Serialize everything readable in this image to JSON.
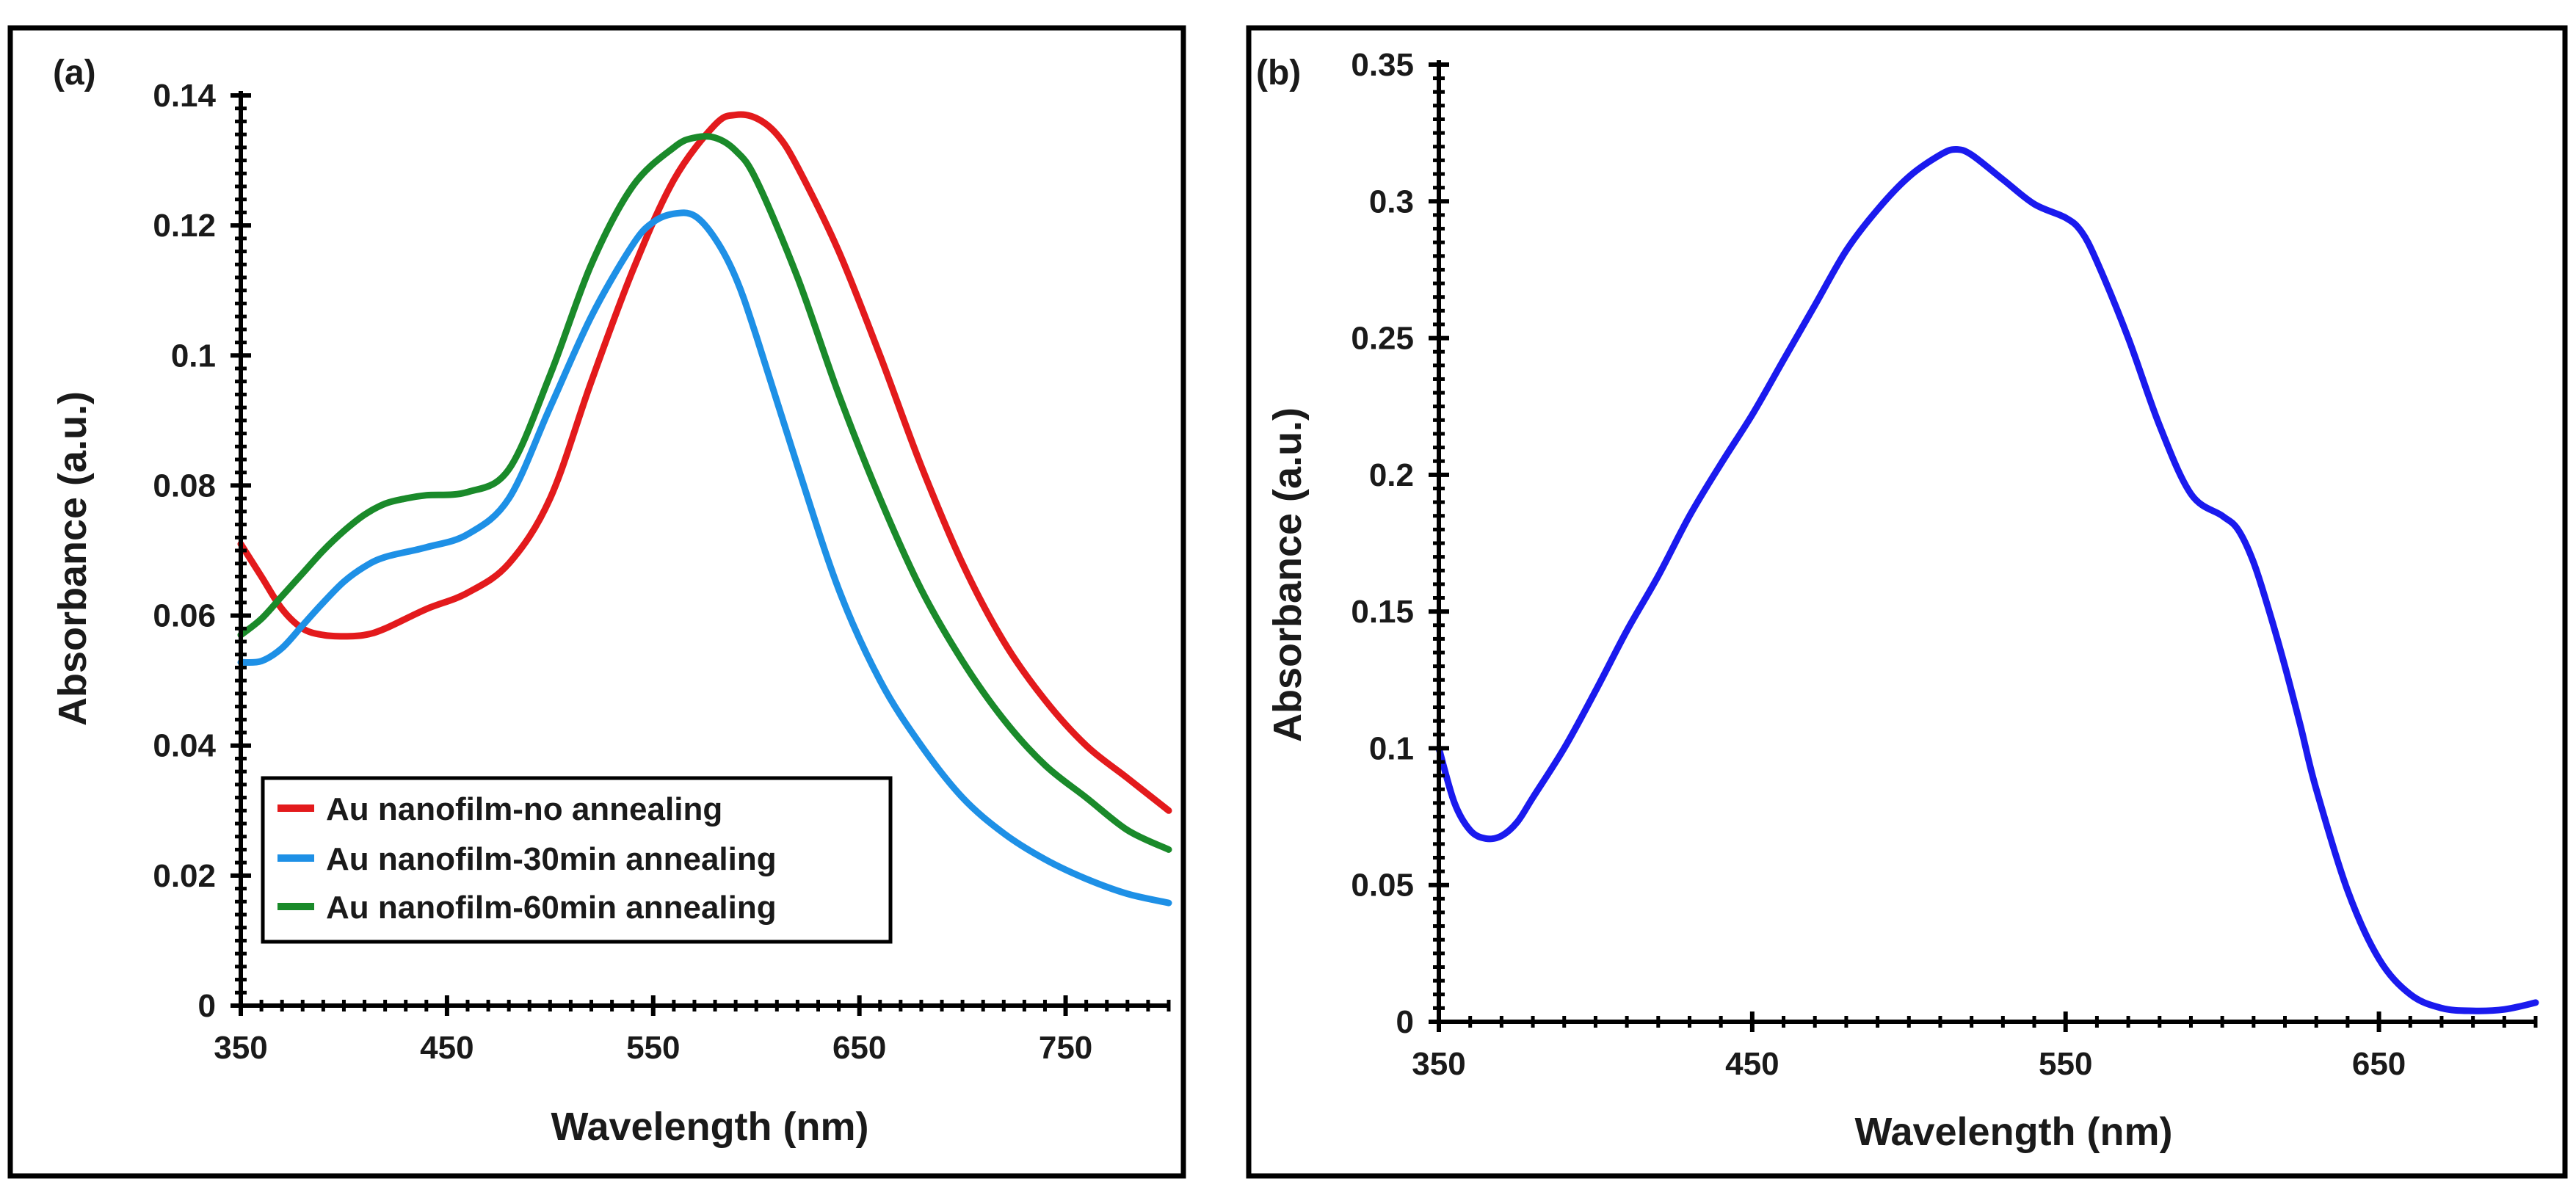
{
  "chart_data": [
    {
      "type": "line",
      "panel_label": "(a)",
      "xlabel": "Wavelength (nm)",
      "ylabel": "Absorbance (a.u.)",
      "xlim": [
        350,
        800
      ],
      "ylim": [
        0,
        0.14
      ],
      "xticks": [
        350,
        450,
        550,
        650,
        750
      ],
      "xtick_labels": [
        "350",
        "450",
        "550",
        "650",
        "750"
      ],
      "yticks": [
        0,
        0.02,
        0.04,
        0.06,
        0.08,
        0.1,
        0.12,
        0.14
      ],
      "ytick_labels": [
        "0",
        "0.02",
        "0.04",
        "0.06",
        "0.08",
        "0.1",
        "0.12",
        "0.14"
      ],
      "grid": false,
      "legend_position": "bottom-left",
      "series": [
        {
          "name": "Au nanofilm-no annealing",
          "color": "#e31a1c",
          "x": [
            350,
            360,
            370,
            380,
            390,
            400,
            410,
            420,
            440,
            460,
            480,
            500,
            520,
            540,
            560,
            580,
            590,
            600,
            610,
            620,
            640,
            660,
            680,
            700,
            720,
            740,
            760,
            780,
            800
          ],
          "y": [
            0.071,
            0.066,
            0.061,
            0.058,
            0.057,
            0.0568,
            0.057,
            0.058,
            0.061,
            0.0635,
            0.068,
            0.078,
            0.096,
            0.113,
            0.127,
            0.1355,
            0.137,
            0.1365,
            0.134,
            0.129,
            0.116,
            0.1,
            0.083,
            0.068,
            0.056,
            0.047,
            0.04,
            0.035,
            0.03
          ]
        },
        {
          "name": "Au nanofilm-30min annealing",
          "color": "#1e90e6",
          "x": [
            350,
            360,
            370,
            380,
            390,
            400,
            410,
            420,
            440,
            460,
            480,
            500,
            520,
            540,
            550,
            560,
            570,
            580,
            590,
            600,
            620,
            640,
            660,
            680,
            700,
            720,
            740,
            760,
            780,
            800
          ],
          "y": [
            0.0528,
            0.053,
            0.055,
            0.0585,
            0.062,
            0.0652,
            0.0675,
            0.069,
            0.0705,
            0.0725,
            0.078,
            0.092,
            0.106,
            0.117,
            0.1205,
            0.1218,
            0.1215,
            0.118,
            0.112,
            0.103,
            0.083,
            0.064,
            0.05,
            0.04,
            0.032,
            0.0265,
            0.0225,
            0.0195,
            0.0172,
            0.0158
          ]
        },
        {
          "name": "Au nanofilm-60min annealing",
          "color": "#1a8a2a",
          "x": [
            350,
            360,
            370,
            380,
            390,
            400,
            410,
            420,
            430,
            440,
            460,
            480,
            500,
            520,
            540,
            560,
            570,
            580,
            590,
            600,
            620,
            640,
            660,
            680,
            700,
            720,
            740,
            760,
            780,
            800
          ],
          "y": [
            0.057,
            0.0595,
            0.063,
            0.0665,
            0.07,
            0.073,
            0.0755,
            0.0772,
            0.078,
            0.0785,
            0.079,
            0.0825,
            0.097,
            0.114,
            0.126,
            0.132,
            0.1335,
            0.1335,
            0.1315,
            0.127,
            0.112,
            0.094,
            0.078,
            0.064,
            0.053,
            0.044,
            0.037,
            0.032,
            0.027,
            0.024
          ]
        }
      ]
    },
    {
      "type": "line",
      "panel_label": "(b)",
      "xlabel": "Wavelength (nm)",
      "ylabel": "Absorbance (a.u.)",
      "xlim": [
        350,
        700
      ],
      "ylim": [
        0,
        0.35
      ],
      "xticks": [
        350,
        450,
        550,
        650
      ],
      "xtick_labels": [
        "350",
        "450",
        "550",
        "650"
      ],
      "yticks": [
        0,
        0.05,
        0.1,
        0.15,
        0.2,
        0.25,
        0.3,
        0.35
      ],
      "ytick_labels": [
        "0",
        "0.05",
        "0.1",
        "0.15",
        "0.2",
        "0.25",
        "0.3",
        "0.35"
      ],
      "grid": false,
      "series": [
        {
          "name": "absorbance",
          "color": "#1a1aee",
          "x": [
            350,
            355,
            360,
            365,
            370,
            375,
            380,
            390,
            400,
            410,
            420,
            430,
            440,
            450,
            460,
            470,
            480,
            490,
            500,
            510,
            515,
            520,
            530,
            540,
            550,
            555,
            560,
            570,
            580,
            590,
            600,
            605,
            610,
            615,
            620,
            625,
            630,
            640,
            650,
            660,
            670,
            680,
            690,
            700
          ],
          "y": [
            0.1,
            0.08,
            0.07,
            0.067,
            0.068,
            0.073,
            0.082,
            0.1,
            0.121,
            0.143,
            0.163,
            0.185,
            0.204,
            0.222,
            0.242,
            0.262,
            0.282,
            0.297,
            0.309,
            0.317,
            0.319,
            0.317,
            0.308,
            0.299,
            0.294,
            0.289,
            0.278,
            0.25,
            0.218,
            0.193,
            0.185,
            0.18,
            0.168,
            0.15,
            0.13,
            0.108,
            0.085,
            0.048,
            0.023,
            0.01,
            0.005,
            0.004,
            0.0045,
            0.007
          ]
        }
      ]
    }
  ]
}
